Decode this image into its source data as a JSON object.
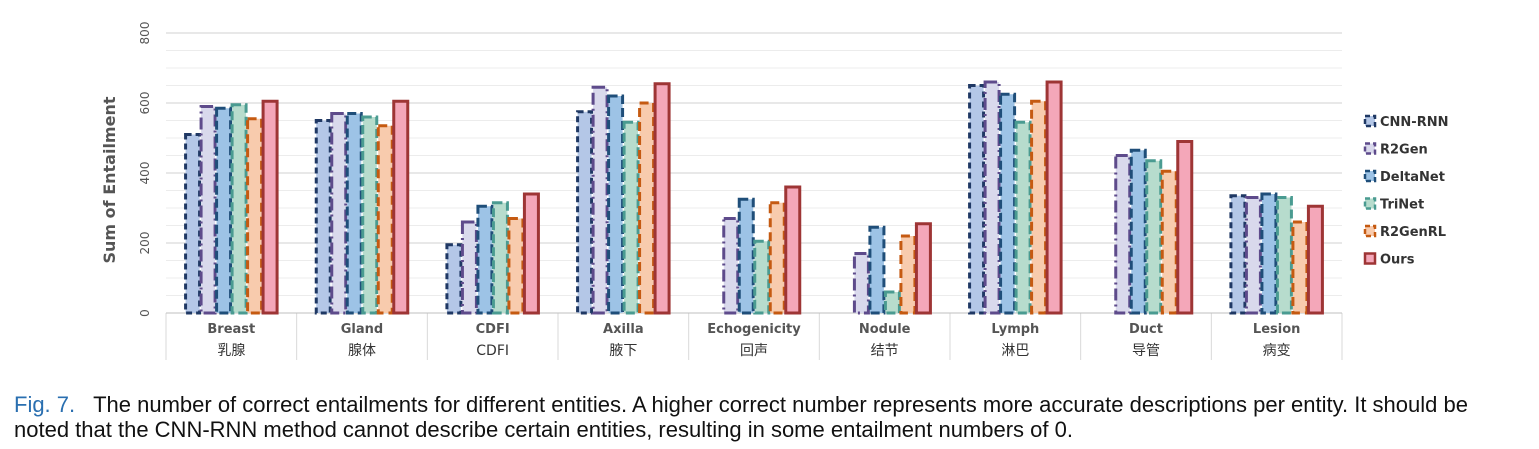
{
  "caption": {
    "label": "Fig. 7.",
    "text": "The number of correct entailments for different entities. A higher correct number represents more accurate descriptions per entity. It should be noted that the CNN-RNN method cannot describe certain entities, resulting in some entailment numbers of 0."
  },
  "chart_data": {
    "type": "bar",
    "ylabel": "Sum of Entailment",
    "ylim": [
      0,
      800
    ],
    "yticks": [
      0,
      200,
      400,
      600,
      800
    ],
    "grid": true,
    "legend_position": "right",
    "categories": [
      "Breast",
      "Gland",
      "CDFI",
      "Axilla",
      "Echogenicity",
      "Nodule",
      "Lymph",
      "Duct",
      "Lesion"
    ],
    "categories_zh": [
      "乳腺",
      "腺体",
      "CDFI",
      "腋下",
      "回声",
      "结节",
      "淋巴",
      "导管",
      "病变"
    ],
    "series": [
      {
        "name": "CNN-RNN",
        "values": [
          510,
          550,
          195,
          575,
          0,
          0,
          650,
          0,
          335
        ],
        "fill": "#b4c7e7",
        "stroke": "#1f3864",
        "dash": "6,4"
      },
      {
        "name": "R2Gen",
        "values": [
          590,
          570,
          260,
          645,
          270,
          170,
          660,
          450,
          330
        ],
        "fill": "#d9d9ec",
        "stroke": "#5e4b8b",
        "dash": "12,4,2,4"
      },
      {
        "name": "DeltaNet",
        "values": [
          585,
          570,
          305,
          620,
          325,
          245,
          625,
          465,
          340
        ],
        "fill": "#9dc3e6",
        "stroke": "#1f4e79",
        "dash": "9,4"
      },
      {
        "name": "TriNet",
        "values": [
          595,
          560,
          315,
          545,
          205,
          60,
          545,
          435,
          330
        ],
        "fill": "#b7dccd",
        "stroke": "#4a9b91",
        "dash": "9,4"
      },
      {
        "name": "R2GenRL",
        "values": [
          555,
          535,
          270,
          600,
          315,
          220,
          605,
          405,
          260
        ],
        "fill": "#f8cbad",
        "stroke": "#c55a11",
        "dash": "9,5"
      },
      {
        "name": "Ours",
        "values": [
          605,
          605,
          340,
          655,
          360,
          255,
          660,
          490,
          305
        ],
        "fill": "#f4a7b9",
        "stroke": "#9e3535",
        "dash": ""
      }
    ]
  }
}
